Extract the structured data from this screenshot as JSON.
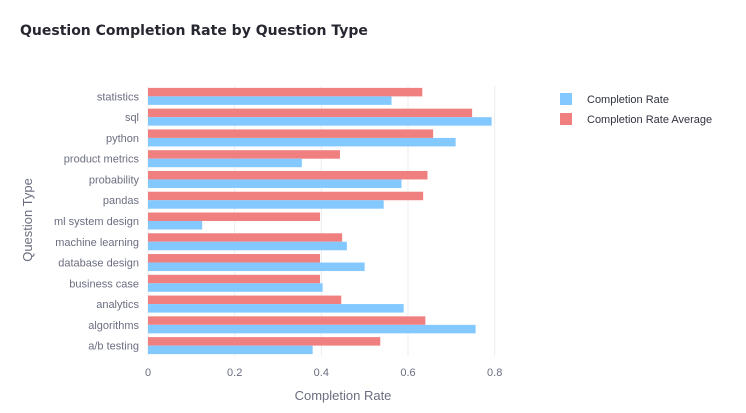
{
  "chart_data": {
    "type": "bar",
    "orientation": "horizontal",
    "title": "Question Completion Rate by Question Type",
    "xlabel": "Completion Rate",
    "ylabel": "Question Type",
    "xlim": [
      0,
      0.9
    ],
    "x_ticks": [
      0,
      0.2,
      0.4,
      0.6,
      0.8
    ],
    "x_tick_labels": [
      "0",
      "0.2",
      "0.4",
      "0.6",
      "0.8"
    ],
    "grid": true,
    "legend_position": "top-right",
    "categories": [
      "statistics",
      "sql",
      "python",
      "product metrics",
      "probability",
      "pandas",
      "ml system design",
      "machine learning",
      "database design",
      "business case",
      "analytics",
      "algorithms",
      "a/b testing"
    ],
    "series": [
      {
        "name": "Completion Rate",
        "color": "#83c9ff",
        "values": [
          0.562,
          0.793,
          0.71,
          0.355,
          0.585,
          0.544,
          0.125,
          0.459,
          0.5,
          0.403,
          0.59,
          0.756,
          0.38
        ]
      },
      {
        "name": "Completion Rate Average",
        "color": "#f08080",
        "values": [
          0.633,
          0.748,
          0.658,
          0.443,
          0.645,
          0.635,
          0.397,
          0.448,
          0.397,
          0.397,
          0.446,
          0.64,
          0.536
        ]
      }
    ]
  }
}
